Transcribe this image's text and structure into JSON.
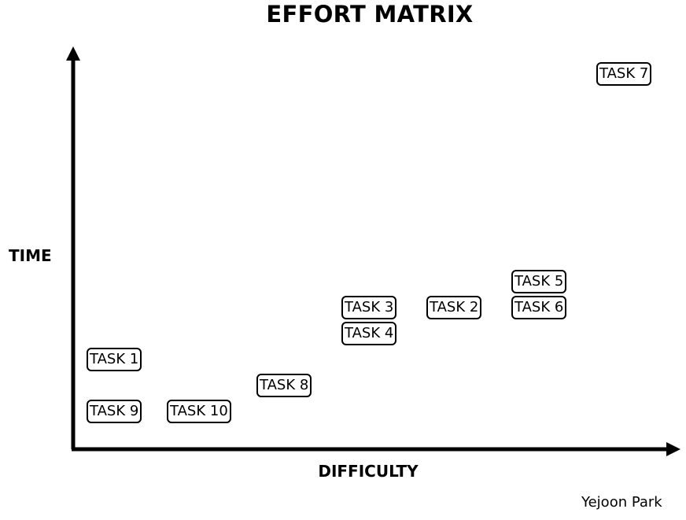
{
  "chart_data": {
    "type": "scatter",
    "title": "EFFORT MATRIX",
    "xlabel": "DIFFICULTY",
    "ylabel": "TIME",
    "credit": "Yejoon Park",
    "grid": false,
    "legend": "none",
    "points": [
      {
        "label": "TASK 1",
        "x": 1,
        "y": 2.0
      },
      {
        "label": "TASK 2",
        "x": 5,
        "y": 3.0
      },
      {
        "label": "TASK 3",
        "x": 4,
        "y": 3.0
      },
      {
        "label": "TASK 4",
        "x": 4,
        "y": 2.5
      },
      {
        "label": "TASK 5",
        "x": 6,
        "y": 3.5
      },
      {
        "label": "TASK 6",
        "x": 6,
        "y": 3.0
      },
      {
        "label": "TASK 7",
        "x": 7,
        "y": 7.5
      },
      {
        "label": "TASK 8",
        "x": 3,
        "y": 1.5
      },
      {
        "label": "TASK 9",
        "x": 1,
        "y": 1.0
      },
      {
        "label": "TASK 10",
        "x": 2,
        "y": 1.0
      }
    ]
  }
}
